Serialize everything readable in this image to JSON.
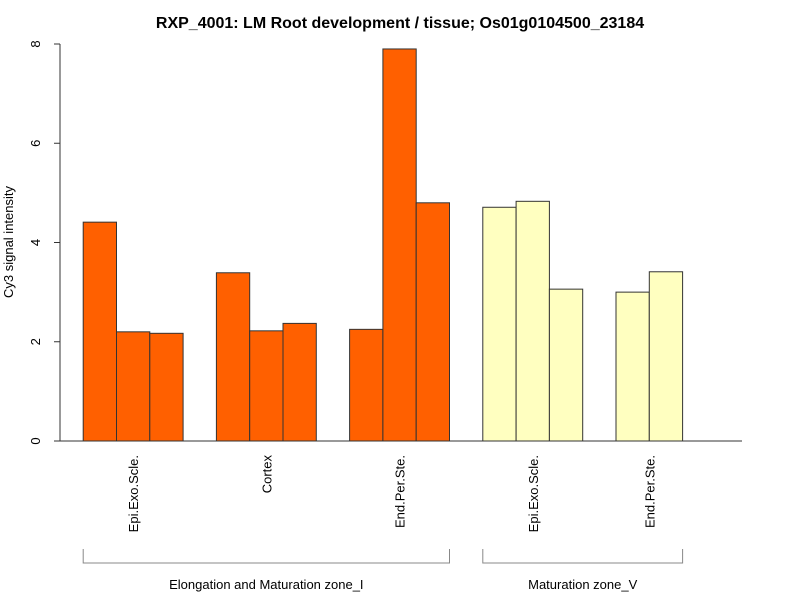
{
  "chart_data": {
    "type": "bar",
    "title": "RXP_4001: LM Root development / tissue; Os01g0104500_23184",
    "xlabel": "",
    "ylabel": "Cy3 signal intensity",
    "ylim": [
      0,
      8
    ],
    "yticks": [
      0,
      2,
      4,
      6,
      8
    ],
    "grid": false,
    "legend": "none",
    "categories": [
      "Epi.Exo.Scle.",
      "Cortex",
      "End.Per.Ste.",
      "Epi.Exo.Scle.",
      "End.Per.Ste."
    ],
    "groups": [
      {
        "name": "Elongation and Maturation zone_I",
        "categories": [
          0,
          1,
          2
        ],
        "color": "#FF6000"
      },
      {
        "name": "Maturation zone_V",
        "categories": [
          3,
          4
        ],
        "color": "#FFFFC0"
      }
    ],
    "series_values": [
      [
        4.41,
        2.2,
        2.17
      ],
      [
        3.39,
        2.22,
        2.37
      ],
      [
        2.25,
        7.9,
        4.8
      ],
      [
        4.71,
        4.83,
        3.06
      ],
      [
        3.0,
        3.41
      ]
    ]
  }
}
